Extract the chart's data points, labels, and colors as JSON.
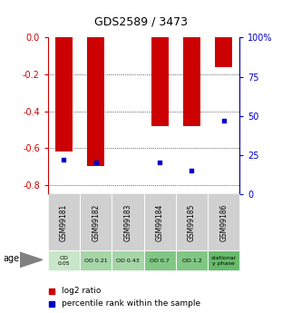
{
  "title": "GDS2589 / 3473",
  "samples": [
    "GSM99181",
    "GSM99182",
    "GSM99183",
    "GSM99184",
    "GSM99185",
    "GSM99186"
  ],
  "log2_ratio": [
    -0.62,
    -0.7,
    0.0,
    -0.48,
    -0.48,
    -0.16
  ],
  "percentile_rank": [
    22,
    20,
    0,
    20,
    15,
    47
  ],
  "age_labels": [
    "OD\n0.05",
    "OD 0.21",
    "OD 0.43",
    "OD 0.7",
    "OD 1.2",
    "stationar\ny phase"
  ],
  "age_colors": [
    "#c8e6c9",
    "#a5d6a7",
    "#a5d6a7",
    "#81c784",
    "#81c784",
    "#66bb6a"
  ],
  "sample_box_color": "#d0d0d0",
  "ylim": [
    -0.85,
    0.0
  ],
  "yticks": [
    0.0,
    -0.2,
    -0.4,
    -0.6,
    -0.8
  ],
  "yticks_right": [
    100,
    75,
    50,
    25,
    0
  ],
  "bar_color": "#cc0000",
  "dot_color": "#0000cc",
  "bg_color": "#ffffff",
  "title_color": "#000000",
  "left_axis_color": "#cc0000",
  "right_axis_color": "#0000cc",
  "legend_red_label": "log2 ratio",
  "legend_blue_label": "percentile rank within the sample",
  "age_text": "age"
}
